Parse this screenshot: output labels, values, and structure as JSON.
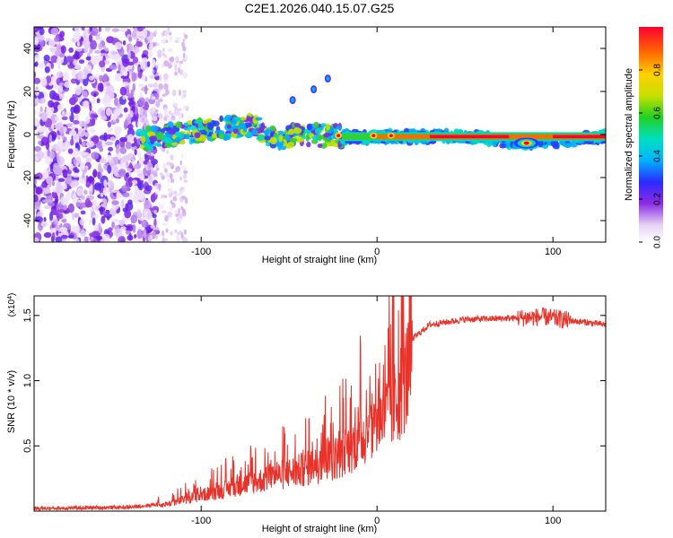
{
  "title": "C2E1.2026.040.15.07.G25",
  "chart_data": [
    {
      "type": "heatmap",
      "xlabel": "Height of straight line (km)",
      "ylabel": "Frequency (Hz)",
      "xlim": [
        -195,
        130
      ],
      "ylim": [
        -50,
        50
      ],
      "xticks": [
        -100,
        0,
        100
      ],
      "yticks": [
        -40,
        -20,
        0,
        20,
        40
      ],
      "colorbar": {
        "label": "Normalized spectral amplitude",
        "range": [
          0,
          1
        ],
        "ticks": [
          "0.0",
          "0.2",
          "0.4",
          "0.6",
          "0.8"
        ]
      },
      "ridge": {
        "description_free_points": [
          {
            "x": -130,
            "f": -2
          },
          {
            "x": -100,
            "f": 2
          },
          {
            "x": -70,
            "f": 4
          },
          {
            "x": -60,
            "f": -2
          },
          {
            "x": -40,
            "f": 0
          },
          {
            "x": -20,
            "f": -1
          },
          {
            "x": 0,
            "f": -1
          },
          {
            "x": 50,
            "f": -1
          },
          {
            "x": 85,
            "f": -4
          },
          {
            "x": 130,
            "f": -1
          }
        ],
        "branch": [
          {
            "x": -48,
            "f": 16
          },
          {
            "x": -36,
            "f": 21
          },
          {
            "x": -28,
            "f": 26
          }
        ]
      }
    },
    {
      "type": "line",
      "xlabel": "Height of straight line (km)",
      "ylabel": "SNR (10 * v/v)",
      "yscale_label": "(x10",
      "yscale_exp": "4",
      "yscale_close": ")",
      "xlim": [
        -195,
        130
      ],
      "ylim": [
        0,
        16500
      ],
      "xticks": [
        -100,
        0,
        100
      ],
      "ytick_labels": [
        "0.5",
        "1.0",
        "1.5"
      ],
      "ytick_values": [
        5000,
        10000,
        15000
      ],
      "color": "#e8322a",
      "envelope": [
        {
          "x": -195,
          "y": 200
        },
        {
          "x": -140,
          "y": 300
        },
        {
          "x": -120,
          "y": 600
        },
        {
          "x": -100,
          "y": 1400
        },
        {
          "x": -80,
          "y": 2200
        },
        {
          "x": -60,
          "y": 3000
        },
        {
          "x": -40,
          "y": 3800
        },
        {
          "x": -20,
          "y": 5000
        },
        {
          "x": -10,
          "y": 6500
        },
        {
          "x": 0,
          "y": 7800
        },
        {
          "x": 10,
          "y": 9500
        },
        {
          "x": 15,
          "y": 11500
        },
        {
          "x": 20,
          "y": 13200
        },
        {
          "x": 30,
          "y": 14300
        },
        {
          "x": 50,
          "y": 14700
        },
        {
          "x": 80,
          "y": 14800
        },
        {
          "x": 95,
          "y": 14900
        },
        {
          "x": 110,
          "y": 14600
        },
        {
          "x": 130,
          "y": 14300
        }
      ]
    }
  ]
}
